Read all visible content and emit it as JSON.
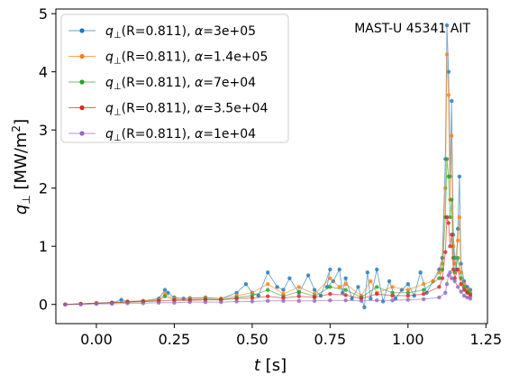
{
  "chart_data": {
    "type": "line",
    "annotation": "MAST-U 45341 AIT",
    "xlabel": {
      "sym": "t",
      "unit": " [s]"
    },
    "ylabel": {
      "sym": "q",
      "sub": "⊥",
      "unit_pre": " [MW/m",
      "sup": "2",
      "unit_post": "]"
    },
    "xlim": [
      -0.13,
      1.255
    ],
    "ylim": [
      -0.33,
      5.08
    ],
    "xticks": [
      {
        "value": 0.0,
        "label": "0.00"
      },
      {
        "value": 0.25,
        "label": "0.25"
      },
      {
        "value": 0.5,
        "label": "0.50"
      },
      {
        "value": 0.75,
        "label": "0.75"
      },
      {
        "value": 1.0,
        "label": "1.00"
      },
      {
        "value": 1.25,
        "label": "1.25"
      }
    ],
    "yticks": [
      {
        "value": 0,
        "label": "0"
      },
      {
        "value": 1,
        "label": "1"
      },
      {
        "value": 2,
        "label": "2"
      },
      {
        "value": 3,
        "label": "3"
      },
      {
        "value": 4,
        "label": "4"
      },
      {
        "value": 5,
        "label": "5"
      }
    ],
    "legend_position": "top-left",
    "series": [
      {
        "name": "R=0.811",
        "legend": {
          "sym": "q",
          "sub": "⊥",
          "rest": "(R=0.811), ",
          "alpha_sym": "α",
          "alpha": "=3e+05"
        },
        "color": "#1f77b4",
        "x": [
          -0.1,
          -0.05,
          0.0,
          0.05,
          0.08,
          0.1,
          0.15,
          0.2,
          0.22,
          0.23,
          0.25,
          0.28,
          0.3,
          0.35,
          0.4,
          0.45,
          0.48,
          0.5,
          0.52,
          0.55,
          0.58,
          0.6,
          0.62,
          0.65,
          0.68,
          0.7,
          0.72,
          0.75,
          0.74,
          0.76,
          0.78,
          0.79,
          0.8,
          0.82,
          0.84,
          0.86,
          0.87,
          0.88,
          0.9,
          0.92,
          0.94,
          0.96,
          0.98,
          1.0,
          1.02,
          1.04,
          1.06,
          1.08,
          1.1,
          1.11,
          1.12,
          1.125,
          1.13,
          1.135,
          1.14,
          1.145,
          1.15,
          1.155,
          1.16,
          1.165,
          1.17,
          1.18,
          1.19,
          1.2
        ],
        "y": [
          0.0,
          0.01,
          0.02,
          0.03,
          0.08,
          0.05,
          0.06,
          0.1,
          0.25,
          0.2,
          0.12,
          0.1,
          0.11,
          0.12,
          0.1,
          0.2,
          0.35,
          0.2,
          0.15,
          0.55,
          0.3,
          0.25,
          0.45,
          0.2,
          0.5,
          0.25,
          0.15,
          0.6,
          0.3,
          0.4,
          0.6,
          0.2,
          0.45,
          0.1,
          0.3,
          -0.05,
          0.55,
          0.1,
          0.6,
          0.05,
          0.4,
          0.1,
          0.25,
          0.35,
          0.15,
          0.55,
          0.2,
          0.4,
          0.6,
          0.8,
          2.5,
          4.8,
          4.0,
          2.2,
          3.5,
          1.2,
          0.8,
          0.6,
          1.3,
          2.2,
          0.7,
          0.4,
          0.3,
          0.25
        ]
      },
      {
        "name": "R=0.811",
        "legend": {
          "sym": "q",
          "sub": "⊥",
          "rest": "(R=0.811), ",
          "alpha_sym": "α",
          "alpha": "=1.4e+05"
        },
        "color": "#ff7f0e",
        "x": [
          -0.1,
          -0.05,
          0.0,
          0.05,
          0.1,
          0.15,
          0.2,
          0.22,
          0.25,
          0.3,
          0.35,
          0.4,
          0.45,
          0.5,
          0.55,
          0.6,
          0.65,
          0.7,
          0.75,
          0.78,
          0.8,
          0.85,
          0.88,
          0.9,
          0.95,
          1.0,
          1.05,
          1.08,
          1.1,
          1.11,
          1.12,
          1.125,
          1.13,
          1.135,
          1.14,
          1.145,
          1.15,
          1.16,
          1.165,
          1.17,
          1.18,
          1.19,
          1.2
        ],
        "y": [
          0.0,
          0.01,
          0.02,
          0.03,
          0.05,
          0.06,
          0.08,
          0.18,
          0.1,
          0.1,
          0.11,
          0.1,
          0.15,
          0.2,
          0.35,
          0.18,
          0.3,
          0.18,
          0.45,
          0.3,
          0.35,
          0.15,
          0.4,
          0.2,
          0.3,
          0.25,
          0.35,
          0.4,
          0.55,
          0.7,
          2.0,
          4.3,
          3.6,
          1.8,
          2.9,
          1.0,
          0.7,
          1.1,
          1.5,
          0.55,
          0.35,
          0.25,
          0.2
        ]
      },
      {
        "name": "R=0.811",
        "legend": {
          "sym": "q",
          "sub": "⊥",
          "rest": "(R=0.811), ",
          "alpha_sym": "α",
          "alpha": "=7e+04"
        },
        "color": "#2ca02c",
        "x": [
          -0.1,
          -0.05,
          0.0,
          0.05,
          0.1,
          0.15,
          0.2,
          0.22,
          0.25,
          0.3,
          0.35,
          0.4,
          0.45,
          0.5,
          0.55,
          0.6,
          0.65,
          0.7,
          0.75,
          0.8,
          0.85,
          0.9,
          0.95,
          1.0,
          1.05,
          1.1,
          1.11,
          1.12,
          1.125,
          1.13,
          1.135,
          1.14,
          1.145,
          1.15,
          1.16,
          1.17,
          1.18,
          1.19,
          1.2
        ],
        "y": [
          0.0,
          0.01,
          0.02,
          0.03,
          0.04,
          0.05,
          0.06,
          0.14,
          0.08,
          0.08,
          0.09,
          0.08,
          0.12,
          0.15,
          0.25,
          0.14,
          0.22,
          0.14,
          0.3,
          0.25,
          0.12,
          0.3,
          0.2,
          0.2,
          0.25,
          0.45,
          0.6,
          1.5,
          2.5,
          2.2,
          1.5,
          1.8,
          0.8,
          0.55,
          0.8,
          0.45,
          0.3,
          0.22,
          0.18
        ]
      },
      {
        "name": "R=0.811",
        "legend": {
          "sym": "q",
          "sub": "⊥",
          "rest": "(R=0.811), ",
          "alpha_sym": "α",
          "alpha": "=3.5e+04"
        },
        "color": "#d62728",
        "x": [
          -0.1,
          -0.05,
          0.0,
          0.05,
          0.1,
          0.15,
          0.2,
          0.25,
          0.3,
          0.35,
          0.4,
          0.45,
          0.5,
          0.55,
          0.6,
          0.65,
          0.7,
          0.75,
          0.8,
          0.85,
          0.9,
          0.95,
          1.0,
          1.05,
          1.1,
          1.11,
          1.12,
          1.125,
          1.13,
          1.135,
          1.14,
          1.145,
          1.15,
          1.16,
          1.17,
          1.18,
          1.19,
          1.2
        ],
        "y": [
          0.0,
          0.01,
          0.02,
          0.03,
          0.04,
          0.05,
          0.06,
          0.07,
          0.07,
          0.08,
          0.08,
          0.1,
          0.11,
          0.14,
          0.11,
          0.14,
          0.12,
          0.18,
          0.16,
          0.1,
          0.18,
          0.15,
          0.15,
          0.18,
          0.3,
          0.45,
          0.9,
          1.5,
          1.4,
          1.0,
          1.2,
          0.6,
          0.45,
          0.6,
          0.35,
          0.25,
          0.2,
          0.15
        ]
      },
      {
        "name": "R=0.811",
        "legend": {
          "sym": "q",
          "sub": "⊥",
          "rest": "(R=0.811), ",
          "alpha_sym": "α",
          "alpha": "=1e+04"
        },
        "color": "#9467bd",
        "x": [
          -0.1,
          -0.05,
          0.0,
          0.05,
          0.1,
          0.15,
          0.2,
          0.25,
          0.3,
          0.35,
          0.4,
          0.45,
          0.5,
          0.55,
          0.6,
          0.65,
          0.7,
          0.75,
          0.8,
          0.85,
          0.9,
          0.95,
          1.0,
          1.05,
          1.1,
          1.12,
          1.125,
          1.13,
          1.135,
          1.14,
          1.15,
          1.16,
          1.17,
          1.18,
          1.19,
          1.2
        ],
        "y": [
          0.0,
          0.0,
          0.01,
          0.01,
          0.02,
          0.02,
          0.03,
          0.03,
          0.04,
          0.04,
          0.04,
          0.05,
          0.05,
          0.06,
          0.06,
          0.06,
          0.06,
          0.07,
          0.07,
          0.06,
          0.07,
          0.07,
          0.08,
          0.09,
          0.12,
          0.2,
          0.35,
          0.5,
          0.55,
          0.45,
          0.4,
          0.3,
          0.22,
          0.15,
          0.12,
          0.1
        ]
      }
    ]
  }
}
